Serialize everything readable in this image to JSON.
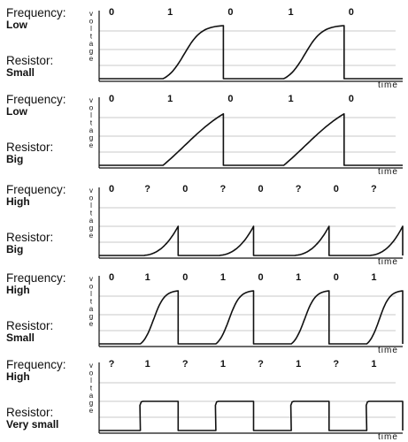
{
  "labels": {
    "frequency": "Frequency:",
    "resistor": "Resistor:",
    "voltage": "voltage",
    "time": "time"
  },
  "panels": [
    {
      "frequency": "Low",
      "resistor": "Small",
      "bits": [
        "0",
        "1",
        "0",
        "1",
        "0"
      ],
      "waveform": "fast-rise-to-full"
    },
    {
      "frequency": "Low",
      "resistor": "Big",
      "bits": [
        "0",
        "1",
        "0",
        "1",
        "0"
      ],
      "waveform": "slow-rise-near-full"
    },
    {
      "frequency": "High",
      "resistor": "Big",
      "bits": [
        "0",
        "?",
        "0",
        "?",
        "0",
        "?",
        "0",
        "?"
      ],
      "waveform": "slow-rise-partial"
    },
    {
      "frequency": "High",
      "resistor": "Small",
      "bits": [
        "0",
        "1",
        "0",
        "1",
        "0",
        "1",
        "0",
        "1"
      ],
      "waveform": "fast-rise-to-full"
    },
    {
      "frequency": "High",
      "resistor": "Very small",
      "bits": [
        "?",
        "1",
        "?",
        "1",
        "?",
        "1",
        "?",
        "1"
      ],
      "waveform": "near-square"
    }
  ],
  "colors": {
    "axis": "#111111",
    "grid": "#c8c8c8",
    "trace": "#111111",
    "text": "#111111"
  }
}
